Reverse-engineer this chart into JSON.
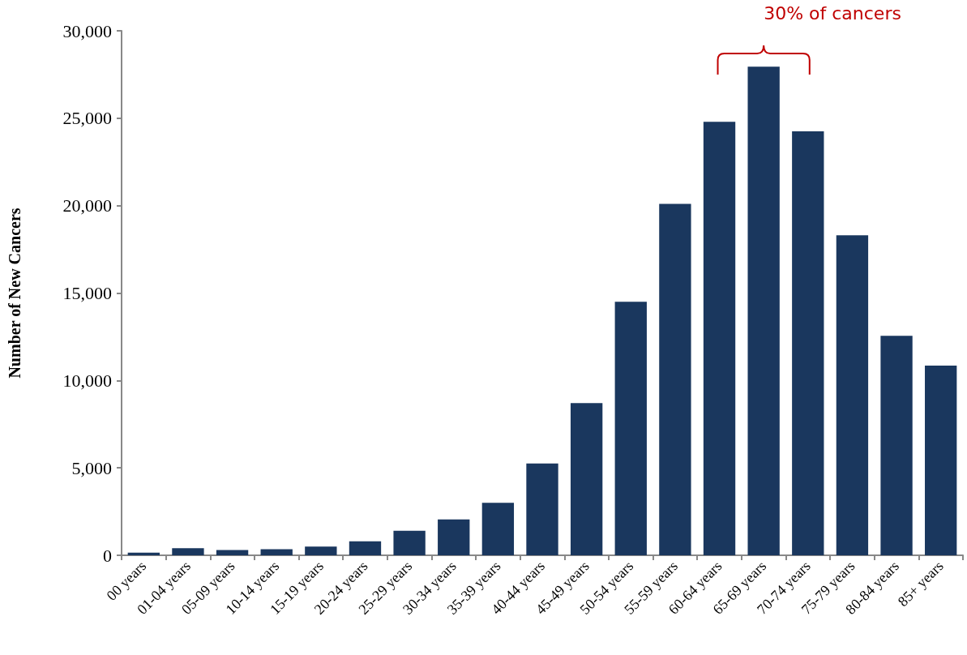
{
  "chart_data": {
    "type": "bar",
    "ylabel": "Number of New Cancers",
    "categories": [
      "00 years",
      "01-04 years",
      "05-09 years",
      "10-14 years",
      "15-19 years",
      "20-24 years",
      "25-29 years",
      "30-34 years",
      "35-39 years",
      "40-44 years",
      "45-49 years",
      "50-54 years",
      "55-59 years",
      "60-64 years",
      "65-69 years",
      "70-74 years",
      "75-79 years",
      "80-84 years",
      "85+ years"
    ],
    "values": [
      150,
      400,
      300,
      350,
      500,
      800,
      1400,
      2050,
      3000,
      5250,
      8700,
      14500,
      20100,
      24800,
      27950,
      24250,
      18300,
      12550,
      10850
    ],
    "color": "#1a375e",
    "ylim": [
      0,
      30000
    ],
    "yticks": [
      0,
      {
        "value": 5000,
        "label": "5,000"
      },
      {
        "value": 10000,
        "label": "10,000"
      },
      {
        "value": 15000,
        "label": "15,000"
      },
      {
        "value": 20000,
        "label": "20,000"
      },
      {
        "value": 25000,
        "label": "25,000"
      },
      {
        "value": 30000,
        "label": "30,000"
      }
    ],
    "grid": false,
    "annotations": [
      "30% of cancers"
    ]
  }
}
